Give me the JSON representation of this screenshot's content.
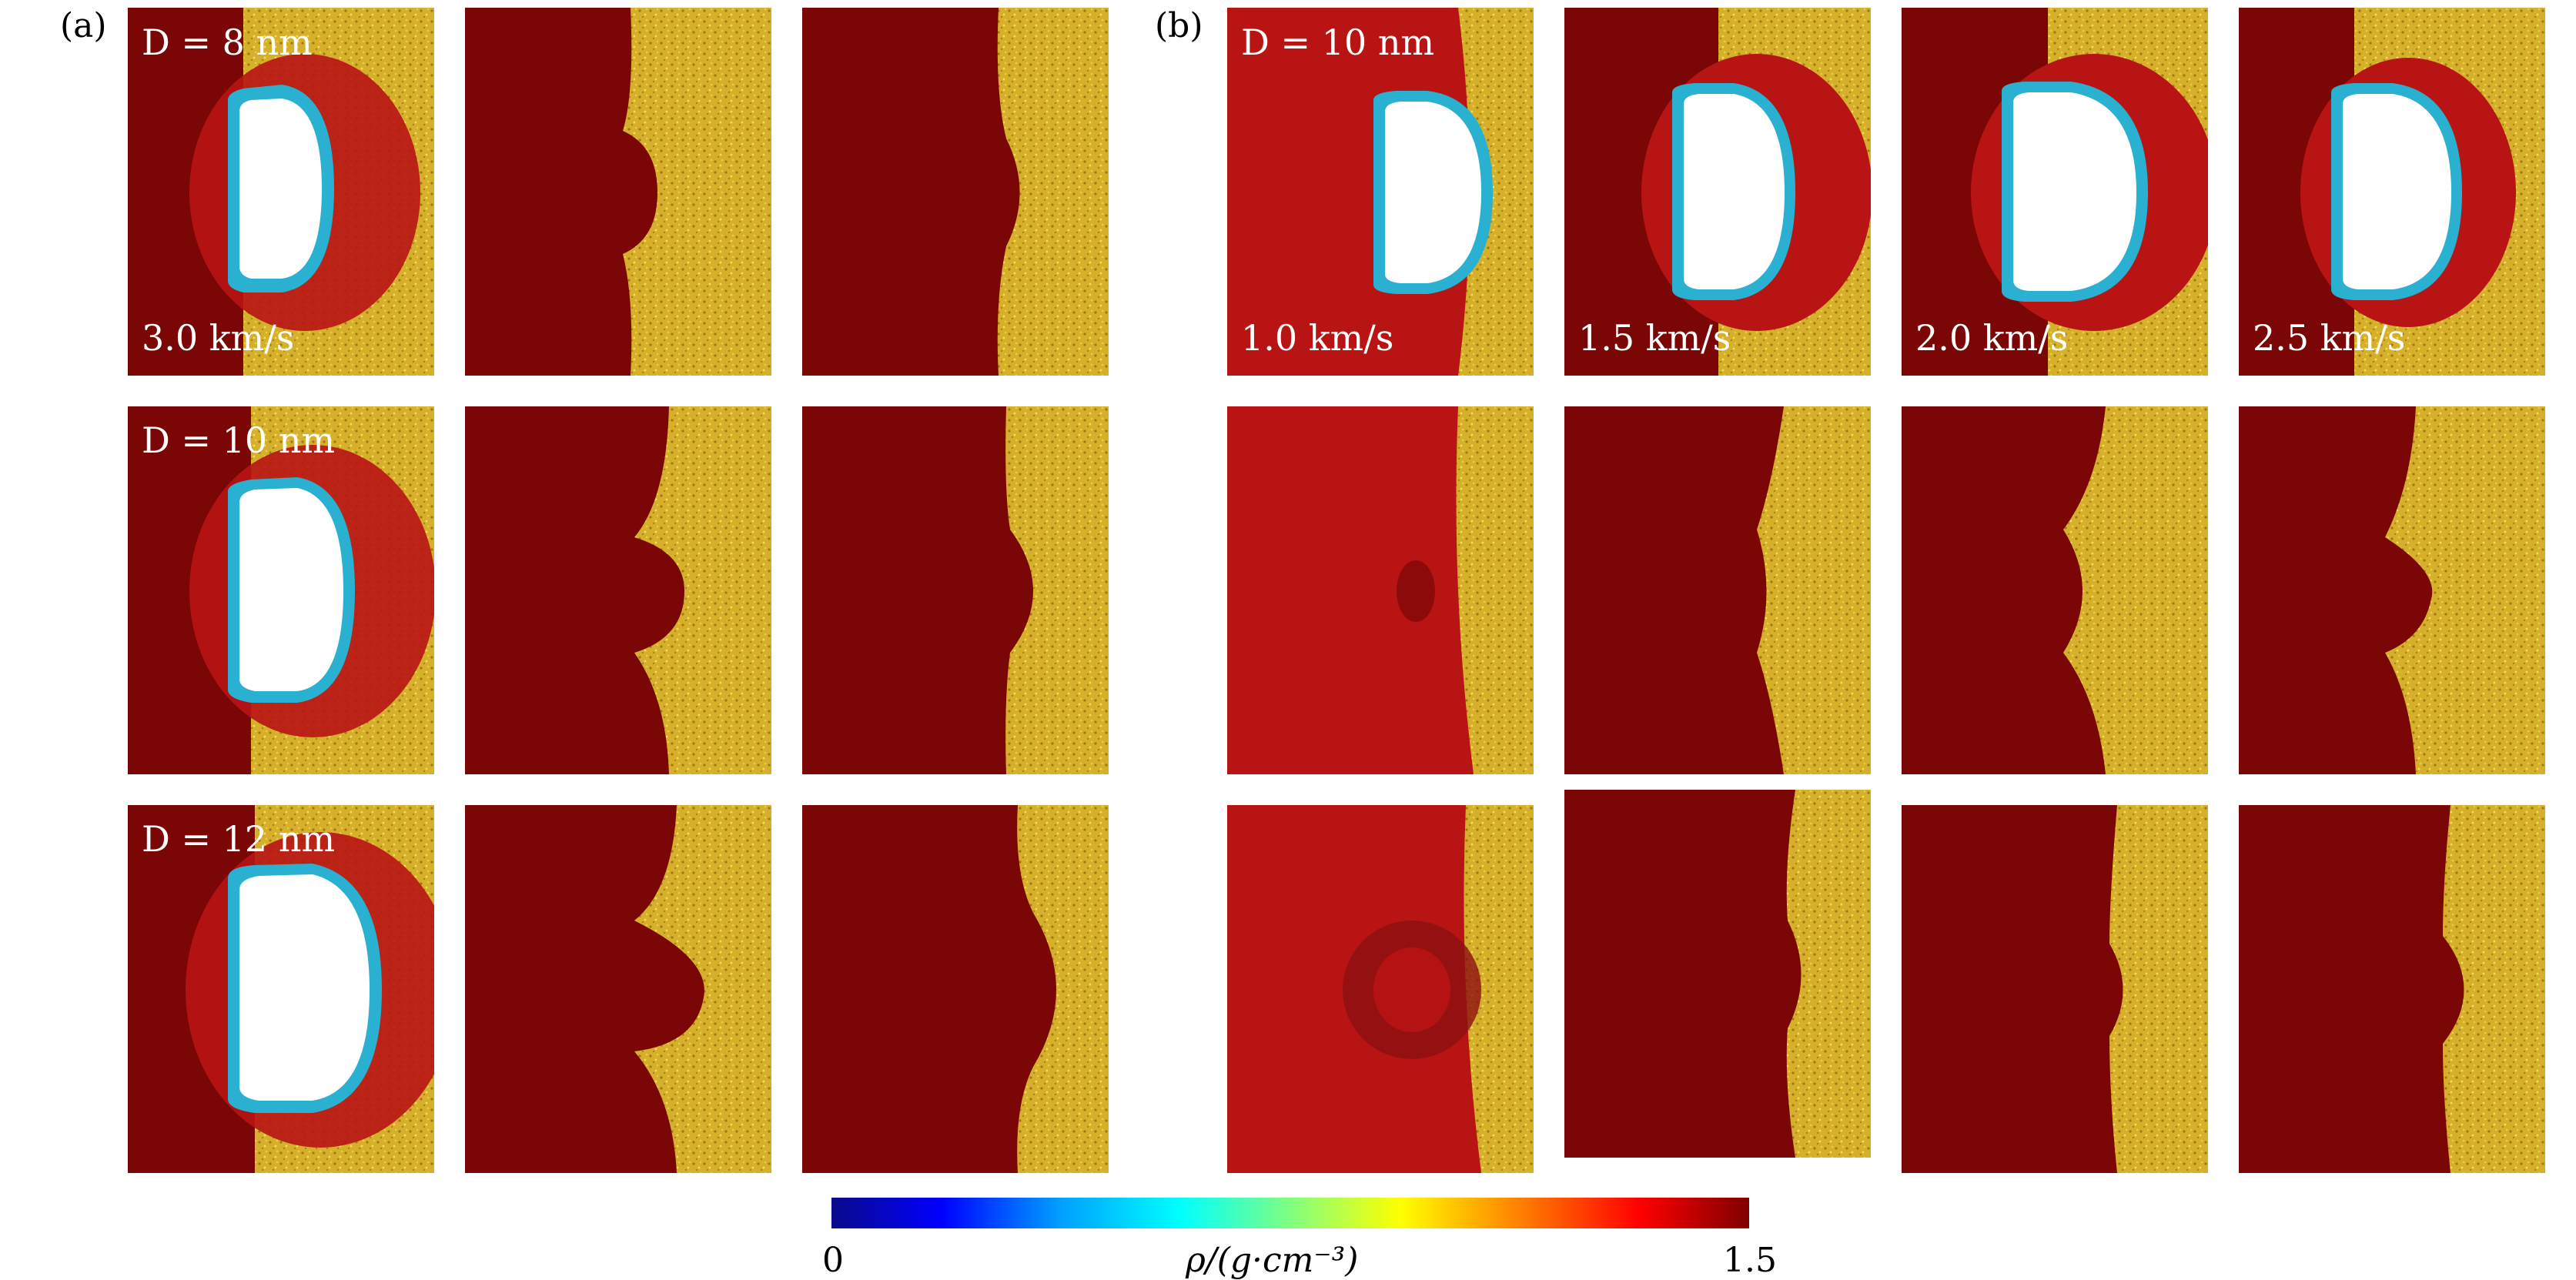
{
  "panels": {
    "a": "(a)",
    "b": "(b)"
  },
  "labels": {
    "a_row1_D": "D = 8 nm",
    "a_row2_D": "D = 10 nm",
    "a_row3_D": "D = 12 nm",
    "b_D": "D = 10 nm",
    "a_velocity": "3.0 km/s",
    "b_velocities": [
      "1.0 km/s",
      "1.5 km/s",
      "2.0 km/s",
      "2.5 km/s"
    ]
  },
  "colorbar": {
    "min": "0",
    "max": "1.5",
    "label": "ρ/(g·cm⁻³)",
    "stops": [
      "#0a0a8c",
      "#0000ff",
      "#00a0ff",
      "#00ffff",
      "#80ff80",
      "#ffff00",
      "#ff8000",
      "#ff0000",
      "#800000"
    ]
  },
  "colors": {
    "shocked": "#7a0606",
    "shocked_partial": "#b81414",
    "unshocked": "#d6b02a",
    "void": "#ffffff"
  }
}
